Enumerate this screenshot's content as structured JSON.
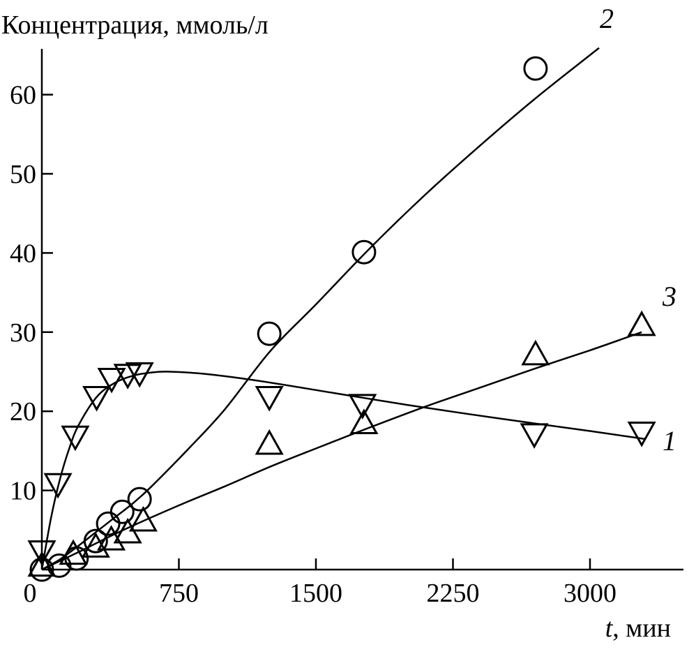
{
  "chart_data": {
    "type": "line",
    "title": "",
    "ylabel": "Концентрация, ммоль/л",
    "xlabel_italic": "t",
    "xlabel_rest": ", мин",
    "xlim": [
      0,
      3500
    ],
    "ylim": [
      0,
      66
    ],
    "xticks": [
      0,
      750,
      1500,
      2250,
      3000
    ],
    "yticks": [
      10,
      20,
      30,
      40,
      50,
      60
    ],
    "grid": false,
    "series": [
      {
        "name": "1",
        "marker": "triangle-down",
        "x": [
          0,
          88,
          183,
          300,
          382,
          470,
          535,
          1245,
          1755,
          2695,
          3283
        ],
        "y": [
          2.5,
          11,
          17,
          22,
          24.3,
          24.8,
          25,
          22,
          21,
          17.3,
          17.5
        ],
        "fit_x": [
          0,
          50,
          100,
          150,
          200,
          300,
          400,
          500,
          600,
          700,
          900,
          1200,
          1600,
          2000,
          2500,
          3000,
          3300
        ],
        "fit_y": [
          0,
          6.5,
          11.5,
          15.3,
          18.2,
          21.8,
          23.6,
          24.5,
          24.9,
          25,
          24.7,
          23.8,
          22.3,
          20.8,
          19.1,
          17.5,
          16.5
        ]
      },
      {
        "name": "2",
        "marker": "circle",
        "x": [
          0,
          95,
          190,
          295,
          363,
          440,
          535,
          1245,
          1763,
          2702
        ],
        "y": [
          0,
          0.5,
          1.4,
          3.6,
          5.8,
          7.3,
          8.9,
          29.8,
          40.1,
          63.3
        ],
        "fit_x": [
          0,
          100,
          200,
          300,
          400,
          500,
          600,
          800,
          1000,
          1250,
          1500,
          1800,
          2100,
          2400,
          2700,
          3000,
          3050
        ],
        "fit_y": [
          0,
          1.3,
          3,
          4.8,
          6.6,
          8.4,
          10.5,
          15.2,
          20.2,
          27.6,
          33.5,
          40.7,
          47.4,
          53.6,
          59.5,
          65,
          65.9
        ]
      },
      {
        "name": "3",
        "marker": "triangle-up",
        "x": [
          0,
          172,
          295,
          380,
          470,
          555,
          1245,
          1763,
          2702,
          3283
        ],
        "y": [
          0.3,
          1.8,
          2.7,
          3.6,
          4.5,
          6,
          15.7,
          18.3,
          27,
          30.7
        ],
        "fit_x": [
          0,
          200,
          400,
          600,
          800,
          1000,
          1250,
          1500,
          1800,
          2100,
          2400,
          2700,
          3000,
          3283
        ],
        "fit_y": [
          0,
          2.2,
          4.5,
          6.6,
          8.6,
          10.5,
          13,
          15.3,
          18,
          20.6,
          23,
          25.4,
          27.7,
          30
        ]
      }
    ]
  }
}
